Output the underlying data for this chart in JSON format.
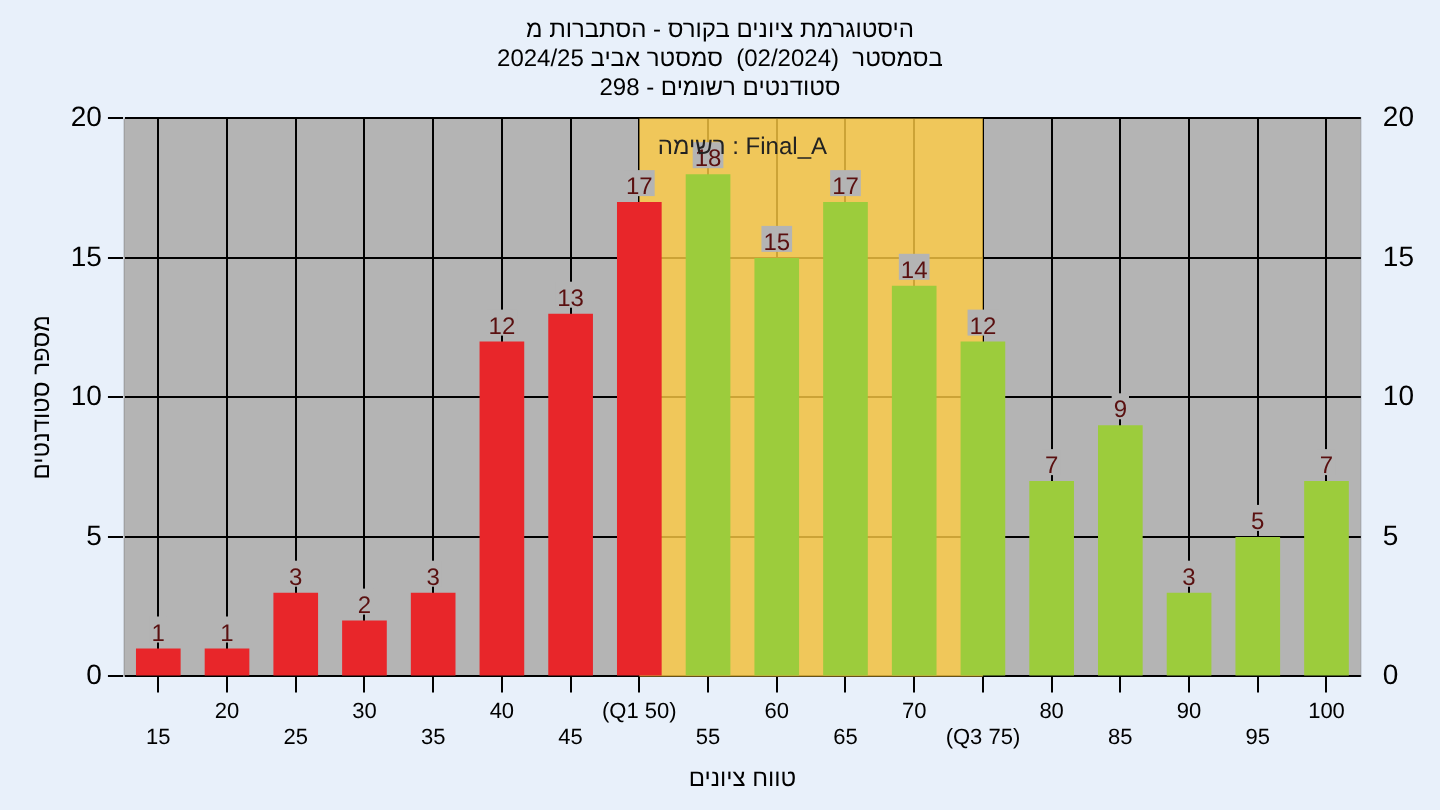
{
  "chart_data": {
    "type": "bar",
    "title": [
      "היסטוגרמת ציונים בקורס - הסתברות מ",
      "בסמסטר  (02/2024)  סמסטר אביב 2024/25",
      "סטודנטים רשומים - 298"
    ],
    "xlabel": "טווח ציונים",
    "ylabel": "מספר סטודנטים",
    "annotations": [
      "רשימה : Final_A"
    ],
    "categories": [
      "15",
      "20",
      "25",
      "30",
      "35",
      "40",
      "45",
      "(Q1 50)",
      "55",
      "60",
      "65",
      "70",
      "(Q3 75)",
      "80",
      "85",
      "90",
      "95",
      "100"
    ],
    "values": [
      1,
      1,
      3,
      2,
      3,
      12,
      13,
      17,
      18,
      15,
      17,
      14,
      12,
      7,
      9,
      3,
      5,
      7
    ],
    "colors": [
      "#e8262a",
      "#e8262a",
      "#e8262a",
      "#e8262a",
      "#e8262a",
      "#e8262a",
      "#e8262a",
      "#e8262a",
      "#9ccc3c",
      "#9ccc3c",
      "#9ccc3c",
      "#9ccc3c",
      "#9ccc3c",
      "#9ccc3c",
      "#9ccc3c",
      "#9ccc3c",
      "#9ccc3c",
      "#9ccc3c"
    ],
    "bands": [
      {
        "axis": "x",
        "from": "(Q1 50)",
        "to": "(Q3 75)",
        "color": "#ffcc44"
      }
    ],
    "ylim": [
      0,
      20
    ],
    "yticks": [
      0,
      5,
      10,
      15,
      20
    ],
    "y2lim": [
      0,
      20
    ],
    "y2ticks": [
      0,
      5,
      10,
      15,
      20
    ],
    "data_labels": true,
    "grid": true,
    "legend": false
  }
}
